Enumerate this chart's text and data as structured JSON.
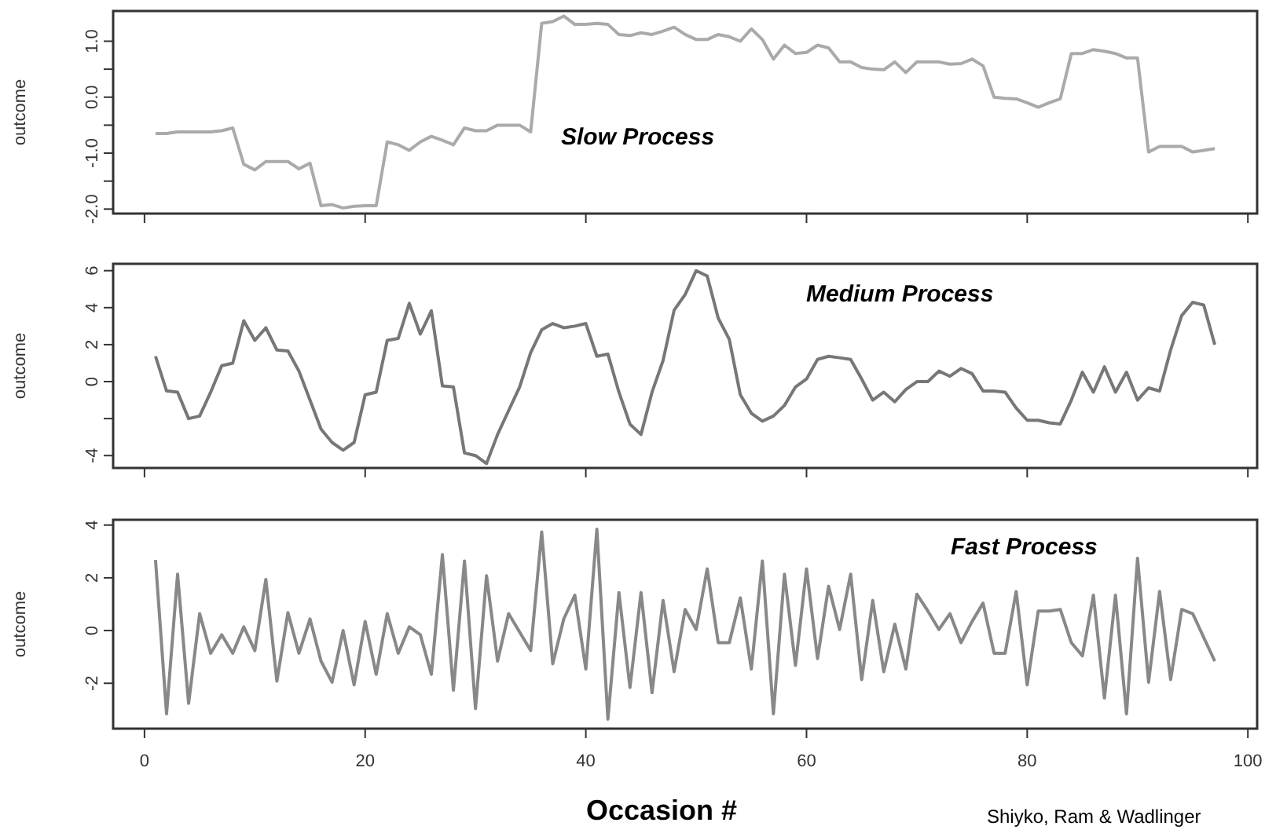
{
  "chart_data": [
    {
      "type": "line",
      "title": "Slow Process",
      "ylabel": "outcome",
      "tick_labels": "y",
      "xlim": [
        -2.84,
        100.84
      ],
      "xticks": [
        0,
        20,
        40,
        60,
        80,
        100
      ],
      "ylim": [
        -2.08,
        1.54
      ],
      "yticks": [
        {
          "value": -2,
          "label": "-2.0"
        },
        {
          "value": -1.5,
          "label": null
        },
        {
          "value": -1,
          "label": "-1.0"
        },
        {
          "value": -0.5,
          "label": null
        },
        {
          "value": 0,
          "label": "0.0"
        },
        {
          "value": 0.5,
          "label": null
        },
        {
          "value": 1,
          "label": "1.0"
        }
      ],
      "x": [
        1,
        2,
        3,
        4,
        5,
        6,
        7,
        8,
        9,
        10,
        11,
        12,
        13,
        14,
        15,
        16,
        17,
        18,
        19,
        20,
        21,
        22,
        23,
        24,
        25,
        26,
        27,
        28,
        29,
        30,
        31,
        32,
        33,
        34,
        35,
        36,
        37,
        38,
        39,
        40,
        41,
        42,
        43,
        44,
        45,
        46,
        47,
        48,
        49,
        50,
        51,
        52,
        53,
        54,
        55,
        56,
        57,
        58,
        59,
        60,
        61,
        62,
        63,
        64,
        65,
        66,
        67,
        68,
        69,
        70,
        71,
        72,
        73,
        74,
        75,
        76,
        77,
        78,
        79,
        80,
        81,
        82,
        83,
        84,
        85,
        86,
        87,
        88,
        89,
        90,
        91,
        92,
        93,
        94,
        95,
        96,
        97
      ],
      "series": [
        {
          "color": "#aaaaaa",
          "values": [
            -0.65,
            -0.65,
            -0.62,
            -0.62,
            -0.62,
            -0.62,
            -0.6,
            -0.55,
            -1.2,
            -1.3,
            -1.15,
            -1.15,
            -1.15,
            -1.28,
            -1.18,
            -1.94,
            -1.92,
            -1.98,
            -1.95,
            -1.94,
            -1.94,
            -0.8,
            -0.85,
            -0.95,
            -0.8,
            -0.7,
            -0.77,
            -0.85,
            -0.55,
            -0.6,
            -0.6,
            -0.5,
            -0.5,
            -0.5,
            -0.62,
            1.32,
            1.35,
            1.45,
            1.3,
            1.3,
            1.32,
            1.3,
            1.12,
            1.1,
            1.15,
            1.12,
            1.18,
            1.25,
            1.12,
            1.03,
            1.03,
            1.12,
            1.08,
            1.0,
            1.22,
            1.03,
            0.68,
            0.93,
            0.78,
            0.8,
            0.93,
            0.88,
            0.63,
            0.63,
            0.53,
            0.5,
            0.49,
            0.63,
            0.44,
            0.63,
            0.63,
            0.63,
            0.59,
            0.6,
            0.68,
            0.56,
            0.0,
            -0.02,
            -0.03,
            -0.1,
            -0.18,
            -0.1,
            -0.03,
            0.78,
            0.78,
            0.85,
            0.82,
            0.78,
            0.7,
            0.7,
            -0.98,
            -0.88,
            -0.88,
            -0.88,
            -0.98,
            -0.95,
            -0.92
          ]
        }
      ]
    },
    {
      "type": "line",
      "title": "Medium Process",
      "ylabel": "outcome",
      "tick_labels": "y",
      "xlim": [
        -2.84,
        100.84
      ],
      "xticks": [
        0,
        20,
        40,
        60,
        80,
        100
      ],
      "ylim": [
        -4.67,
        6.37
      ],
      "yticks": [
        -4,
        {
          "value": -2,
          "label": null
        },
        0,
        2,
        4,
        6
      ],
      "x": [
        1,
        2,
        3,
        4,
        5,
        6,
        7,
        8,
        9,
        10,
        11,
        12,
        13,
        14,
        15,
        16,
        17,
        18,
        19,
        20,
        21,
        22,
        23,
        24,
        25,
        26,
        27,
        28,
        29,
        30,
        31,
        32,
        33,
        34,
        35,
        36,
        37,
        38,
        39,
        40,
        41,
        42,
        43,
        44,
        45,
        46,
        47,
        48,
        49,
        50,
        51,
        52,
        53,
        54,
        55,
        56,
        57,
        58,
        59,
        60,
        61,
        62,
        63,
        64,
        65,
        66,
        67,
        68,
        69,
        70,
        71,
        72,
        73,
        74,
        75,
        76,
        77,
        78,
        79,
        80,
        81,
        82,
        83,
        84,
        85,
        86,
        87,
        88,
        89,
        90,
        91,
        92,
        93,
        94,
        95,
        96,
        97
      ],
      "series": [
        {
          "color": "#777777",
          "values": [
            1.37,
            -0.5,
            -0.57,
            -2.0,
            -1.86,
            -0.57,
            0.86,
            1.0,
            3.29,
            2.23,
            2.91,
            1.71,
            1.66,
            0.57,
            -1.0,
            -2.57,
            -3.29,
            -3.71,
            -3.29,
            -0.71,
            -0.57,
            2.23,
            2.34,
            4.23,
            2.57,
            3.83,
            -0.23,
            -0.29,
            -3.86,
            -4.0,
            -4.43,
            -2.86,
            -1.57,
            -0.29,
            1.57,
            2.8,
            3.14,
            2.91,
            3.0,
            3.14,
            1.37,
            1.49,
            -0.57,
            -2.3,
            -2.86,
            -0.57,
            1.14,
            3.86,
            4.71,
            6.0,
            5.71,
            3.43,
            2.29,
            -0.71,
            -1.71,
            -2.14,
            -1.86,
            -1.29,
            -0.29,
            0.14,
            1.2,
            1.37,
            1.29,
            1.2,
            0.14,
            -1.0,
            -0.57,
            -1.09,
            -0.43,
            0.0,
            0.0,
            0.57,
            0.29,
            0.71,
            0.43,
            -0.51,
            -0.51,
            -0.57,
            -1.43,
            -2.09,
            -2.09,
            -2.23,
            -2.29,
            -1.0,
            0.51,
            -0.57,
            0.8,
            -0.57,
            0.51,
            -1.0,
            -0.34,
            -0.51,
            1.71,
            3.57,
            4.29,
            4.14,
            2.0
          ]
        }
      ]
    },
    {
      "type": "line",
      "title": "Fast Process",
      "ylabel": "outcome",
      "xlabel": "Occasion #",
      "xlim": [
        -2.84,
        100.84
      ],
      "xticks": [
        0,
        20,
        40,
        60,
        80,
        100
      ],
      "ylim": [
        -3.72,
        4.2
      ],
      "yticks": [
        -2,
        0,
        2,
        4
      ],
      "annotations": [
        "Shiyko, Ram & Wadlinger"
      ],
      "x": [
        1,
        2,
        3,
        4,
        5,
        6,
        7,
        8,
        9,
        10,
        11,
        12,
        13,
        14,
        15,
        16,
        17,
        18,
        19,
        20,
        21,
        22,
        23,
        24,
        25,
        26,
        27,
        28,
        29,
        30,
        31,
        32,
        33,
        34,
        35,
        36,
        37,
        38,
        39,
        40,
        41,
        42,
        43,
        44,
        45,
        46,
        47,
        48,
        49,
        50,
        51,
        52,
        53,
        54,
        55,
        56,
        57,
        58,
        59,
        60,
        61,
        62,
        63,
        64,
        65,
        66,
        67,
        68,
        69,
        70,
        71,
        72,
        73,
        74,
        75,
        76,
        77,
        78,
        79,
        80,
        81,
        82,
        83,
        84,
        85,
        86,
        87,
        88,
        89,
        90,
        91,
        92,
        93,
        94,
        95,
        96,
        97
      ],
      "series": [
        {
          "color": "#888888",
          "values": [
            2.68,
            -3.16,
            2.14,
            -2.76,
            0.64,
            -0.86,
            -0.16,
            -0.86,
            0.14,
            -0.76,
            1.94,
            -1.92,
            0.68,
            -0.86,
            0.44,
            -1.16,
            -1.96,
            0.0,
            -2.06,
            0.34,
            -1.66,
            0.64,
            -0.86,
            0.14,
            -0.16,
            -1.66,
            2.88,
            -2.26,
            2.64,
            -2.96,
            2.08,
            -1.16,
            0.64,
            -0.06,
            -0.76,
            3.74,
            -1.26,
            0.44,
            1.34,
            -1.46,
            3.84,
            -3.36,
            1.44,
            -2.16,
            1.44,
            -2.36,
            1.14,
            -1.56,
            0.8,
            0.04,
            2.34,
            -0.46,
            -0.46,
            1.24,
            -1.46,
            2.64,
            -3.16,
            2.14,
            -1.32,
            2.34,
            -1.06,
            1.68,
            0.04,
            2.14,
            -1.86,
            1.14,
            -1.56,
            0.24,
            -1.46,
            1.38,
            0.74,
            0.04,
            0.64,
            -0.46,
            0.34,
            1.04,
            -0.86,
            -0.86,
            1.48,
            -2.06,
            0.74,
            0.74,
            0.8,
            -0.46,
            -0.96,
            1.34,
            -2.56,
            1.34,
            -3.16,
            2.74,
            -1.96,
            1.48,
            -1.86,
            0.8,
            0.64,
            -0.26,
            -1.16
          ]
        }
      ]
    }
  ]
}
